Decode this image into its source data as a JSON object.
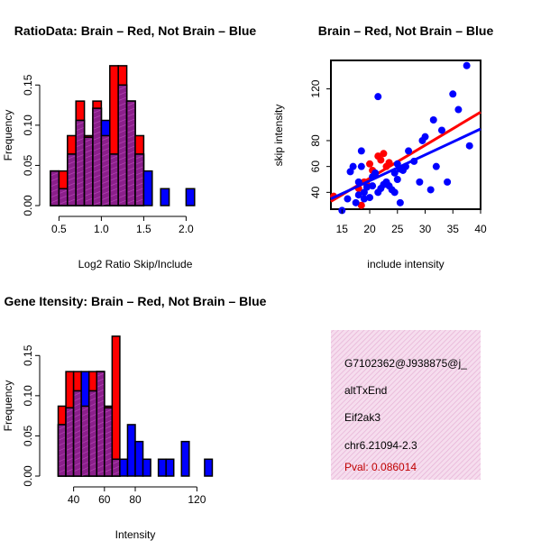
{
  "chart_data": [
    {
      "type": "bar",
      "title": "RatioData: Brain – Red, Not Brain – Blue",
      "xlabel": "Log2 Ratio Skip/Include",
      "ylabel": "Frequency",
      "xlim": [
        0.4,
        2.4
      ],
      "ylim": [
        0,
        0.175
      ],
      "xticks": [
        "0.5",
        "1.0",
        "1.5",
        "2.0"
      ],
      "yticks": [
        "0.00",
        "0.05",
        "0.10",
        "0.15"
      ],
      "bin_start": 0.4,
      "bin_width": 0.1,
      "series": [
        {
          "name": "Brain",
          "color": "#ff0000",
          "values": [
            0.043,
            0.043,
            0.087,
            0.13,
            0.087,
            0.13,
            0.087,
            0.174,
            0.174,
            0.13,
            0.087,
            0.0,
            0.0,
            0.0,
            0.0,
            0.0,
            0.0,
            0.0
          ]
        },
        {
          "name": "Not Brain",
          "color": "#0000ff",
          "values": [
            0.043,
            0.021,
            0.064,
            0.106,
            0.085,
            0.121,
            0.106,
            0.064,
            0.15,
            0.13,
            0.064,
            0.043,
            0.0,
            0.021,
            0.0,
            0.0,
            0.021,
            0.0
          ]
        }
      ]
    },
    {
      "type": "scatter",
      "title": "Brain – Red, Not Brain – Blue",
      "xlabel": "include intensity",
      "ylabel": "skip intensity",
      "xlim": [
        13,
        40
      ],
      "ylim": [
        27,
        142
      ],
      "xticks": [
        "15",
        "20",
        "25",
        "30",
        "35",
        "40"
      ],
      "yticks": [
        "40",
        "60",
        "80",
        "120"
      ],
      "series": [
        {
          "name": "Brain",
          "color": "#ff0000",
          "points": [
            [
              13.5,
              37
            ],
            [
              18,
              43
            ],
            [
              18.5,
              30
            ],
            [
              19,
              48
            ],
            [
              19.5,
              46
            ],
            [
              20,
              62
            ],
            [
              20.5,
              57
            ],
            [
              21,
              53
            ],
            [
              21.5,
              68
            ],
            [
              22,
              65
            ],
            [
              22.5,
              70
            ],
            [
              23,
              60
            ],
            [
              23.5,
              63
            ]
          ],
          "fit": [
            [
              13,
              33
            ],
            [
              40,
              102
            ]
          ]
        },
        {
          "name": "Not Brain",
          "color": "#0000ff",
          "points": [
            [
              15,
              26
            ],
            [
              16,
              35
            ],
            [
              16.5,
              56
            ],
            [
              17,
              60
            ],
            [
              17.5,
              32
            ],
            [
              18,
              48
            ],
            [
              18,
              38
            ],
            [
              18.5,
              60
            ],
            [
              18.5,
              72
            ],
            [
              19,
              40
            ],
            [
              19,
              35
            ],
            [
              19.5,
              44
            ],
            [
              20,
              36
            ],
            [
              20.5,
              45
            ],
            [
              20.5,
              52
            ],
            [
              21,
              55
            ],
            [
              21.5,
              40
            ],
            [
              21.5,
              114
            ],
            [
              22,
              43
            ],
            [
              22.5,
              46
            ],
            [
              23,
              48
            ],
            [
              23.5,
              45
            ],
            [
              24,
              42
            ],
            [
              24.5,
              55
            ],
            [
              24.5,
              40
            ],
            [
              25,
              62
            ],
            [
              25,
              50
            ],
            [
              25.5,
              58
            ],
            [
              25.5,
              32
            ],
            [
              26,
              57
            ],
            [
              26.5,
              60
            ],
            [
              27,
              72
            ],
            [
              28,
              64
            ],
            [
              29,
              48
            ],
            [
              29.5,
              80
            ],
            [
              30,
              83
            ],
            [
              31,
              42
            ],
            [
              31.5,
              96
            ],
            [
              32,
              60
            ],
            [
              33,
              88
            ],
            [
              34,
              48
            ],
            [
              35,
              116
            ],
            [
              36,
              104
            ],
            [
              37.5,
              138
            ],
            [
              38,
              76
            ]
          ],
          "fit": [
            [
              13,
              35
            ],
            [
              40,
              89
            ]
          ]
        }
      ]
    },
    {
      "type": "bar",
      "title": "Gene Itensity: Brain – Red, Not Brain – Blue",
      "xlabel": "Intensity",
      "ylabel": "Frequency",
      "xlim": [
        25,
        135
      ],
      "ylim": [
        0,
        0.175
      ],
      "xticks": [
        "40",
        "60",
        "80",
        "120"
      ],
      "yticks": [
        "0.00",
        "0.05",
        "0.10",
        "0.15"
      ],
      "bin_start": 30,
      "bin_width": 5,
      "series": [
        {
          "name": "Brain",
          "color": "#ff0000",
          "values": [
            0.087,
            0.13,
            0.13,
            0.087,
            0.13,
            0.13,
            0.087,
            0.174,
            0.0,
            0.0,
            0.0,
            0.0,
            0.0,
            0.0,
            0.0,
            0.0,
            0.0,
            0.0,
            0.0,
            0.0
          ]
        },
        {
          "name": "Not Brain",
          "color": "#0000ff",
          "values": [
            0.064,
            0.085,
            0.106,
            0.13,
            0.106,
            0.13,
            0.085,
            0.021,
            0.021,
            0.064,
            0.043,
            0.021,
            0.0,
            0.021,
            0.021,
            0.0,
            0.043,
            0.0,
            0.0,
            0.021
          ]
        }
      ]
    }
  ],
  "info": {
    "id": "G7102362@J938875@j_",
    "type": "altTxEnd",
    "gene": "Eif2ak3",
    "locus": "chr6.21094-2.3",
    "pval": "Pval: 0.086014"
  }
}
